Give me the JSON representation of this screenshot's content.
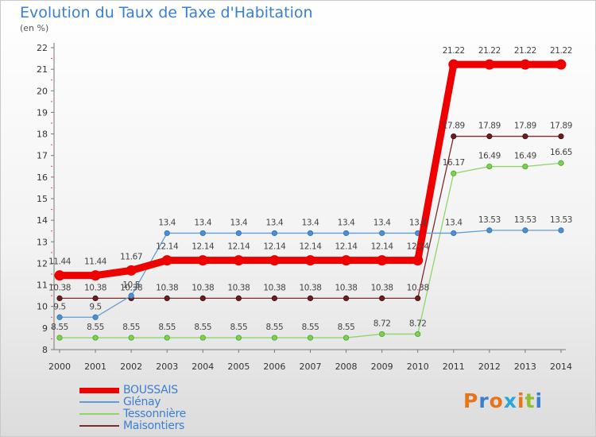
{
  "title": "Evolution du Taux de Taxe d'Habitation",
  "subtitle": "(en %)",
  "logo": "Proxiti",
  "chart_data": {
    "type": "line",
    "x": [
      "2000",
      "2001",
      "2002",
      "2003",
      "2004",
      "2005",
      "2006",
      "2007",
      "2008",
      "2009",
      "2010",
      "2011",
      "2012",
      "2013",
      "2014"
    ],
    "ylim": [
      8,
      22
    ],
    "yticks": [
      "8",
      "9",
      "10",
      "11",
      "12",
      "13",
      "14",
      "15",
      "16",
      "17",
      "18",
      "19",
      "20",
      "21",
      "22"
    ],
    "series": [
      {
        "name": "BOUSSAIS",
        "color": "#ee0000",
        "values": [
          11.44,
          11.44,
          11.67,
          12.14,
          12.14,
          12.14,
          12.14,
          12.14,
          12.14,
          12.14,
          12.14,
          21.22,
          21.22,
          21.22,
          21.22
        ],
        "labels": [
          "11.44",
          "11.44",
          "11.67",
          "12.14",
          "12.14",
          "12.14",
          "12.14",
          "12.14",
          "12.14",
          "12.14",
          "12.14",
          "21.22",
          "21.22",
          "21.22",
          "21.22"
        ]
      },
      {
        "name": "Glénay",
        "color": "#5f9ed6",
        "values": [
          9.5,
          9.5,
          10.5,
          13.4,
          13.4,
          13.4,
          13.4,
          13.4,
          13.4,
          13.4,
          13.4,
          13.4,
          13.53,
          13.53,
          13.53
        ],
        "labels": [
          "9.5",
          "9.5",
          "10.5",
          "13.4",
          "13.4",
          "13.4",
          "13.4",
          "13.4",
          "13.4",
          "13.4",
          "13.4",
          "13.4",
          "13.53",
          "13.53",
          "13.53"
        ]
      },
      {
        "name": "Tessonnière",
        "color": "#8fd66a",
        "values": [
          8.55,
          8.55,
          8.55,
          8.55,
          8.55,
          8.55,
          8.55,
          8.55,
          8.55,
          8.72,
          8.72,
          16.17,
          16.49,
          16.49,
          16.65
        ],
        "labels": [
          "8.55",
          "8.55",
          "8.55",
          "8.55",
          "8.55",
          "8.55",
          "8.55",
          "8.55",
          "8.55",
          "8.72",
          "8.72",
          "16.17",
          "16.49",
          "16.49",
          "16.65"
        ]
      },
      {
        "name": "Maisontiers",
        "color": "#7b2d2d",
        "values": [
          10.38,
          10.38,
          10.38,
          10.38,
          10.38,
          10.38,
          10.38,
          10.38,
          10.38,
          10.38,
          10.38,
          17.89,
          17.89,
          17.89,
          17.89
        ],
        "labels": [
          "10.38",
          "10.38",
          "10.38",
          "10.38",
          "10.38",
          "10.38",
          "10.38",
          "10.38",
          "10.38",
          "10.38",
          "10.38",
          "17.89",
          "17.89",
          "17.89",
          "17.89"
        ]
      }
    ]
  }
}
